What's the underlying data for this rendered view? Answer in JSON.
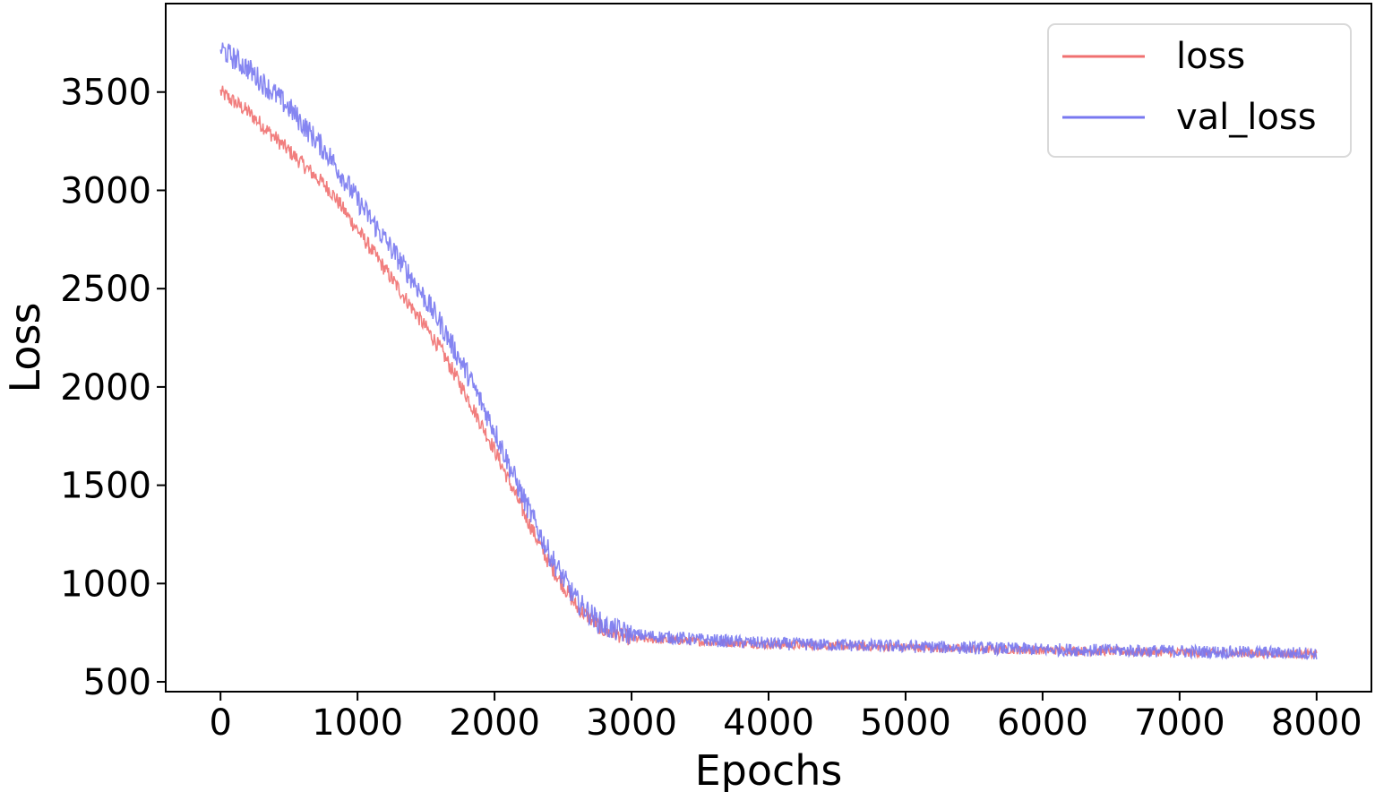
{
  "chart_data": {
    "type": "line",
    "title": "",
    "xlabel": "Epochs",
    "ylabel": "Loss",
    "xlim": [
      -400,
      8400
    ],
    "ylim": [
      450,
      3950
    ],
    "xticks": [
      0,
      1000,
      2000,
      3000,
      4000,
      5000,
      6000,
      7000,
      8000
    ],
    "yticks": [
      500,
      1000,
      1500,
      2000,
      2500,
      3000,
      3500
    ],
    "grid": false,
    "legend_position": "upper right",
    "series": [
      {
        "name": "loss",
        "color": "#f07070",
        "noise": 40,
        "x": [
          0,
          200,
          500,
          800,
          1000,
          1200,
          1400,
          1600,
          1800,
          2000,
          2200,
          2400,
          2600,
          2800,
          3000,
          3500,
          4000,
          5000,
          6000,
          7000,
          8000
        ],
        "y": [
          3500,
          3400,
          3200,
          3000,
          2800,
          2600,
          2400,
          2200,
          1950,
          1680,
          1380,
          1100,
          880,
          760,
          720,
          705,
          690,
          675,
          660,
          650,
          640
        ]
      },
      {
        "name": "val_loss",
        "color": "#7878f0",
        "noise": 60,
        "x": [
          0,
          200,
          500,
          800,
          1000,
          1200,
          1400,
          1600,
          1800,
          2000,
          2200,
          2400,
          2600,
          2800,
          3000,
          3500,
          4000,
          5000,
          6000,
          7000,
          8000
        ],
        "y": [
          3720,
          3620,
          3420,
          3170,
          2950,
          2750,
          2550,
          2330,
          2070,
          1780,
          1450,
          1150,
          910,
          780,
          740,
          715,
          695,
          680,
          665,
          655,
          645
        ]
      }
    ]
  }
}
